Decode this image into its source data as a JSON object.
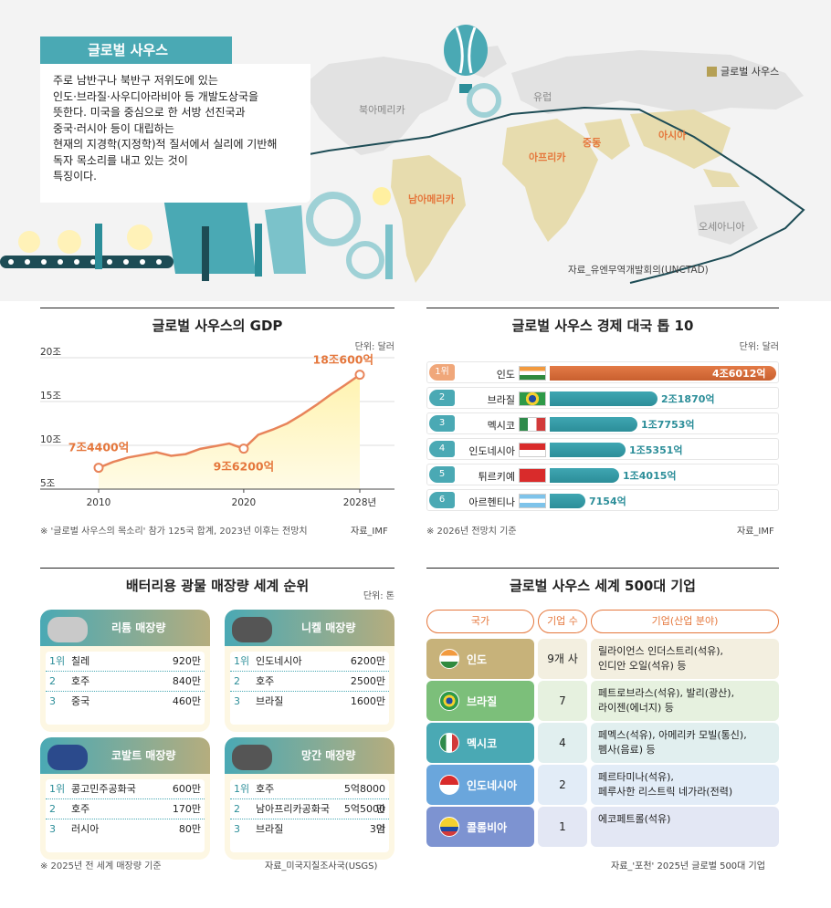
{
  "hero": {
    "tag": "글로벌 사우스",
    "intro": [
      "주로 남반구나 북반구 저위도에 있는",
      "인도·브라질·사우디아라비아 등 개발도상국을",
      "뜻한다. 미국을 중심으로 한 서방 선진국과",
      "중국·러시아 등이 대립하는",
      "현재의 지경학(지정학)적 질서에서 실리에 기반해",
      "독자 목소리를 내고 있는 것이",
      "특징이다."
    ],
    "legend": "글로벌 사우스",
    "regions": {
      "north_america": "북아메리카",
      "europe": "유럽",
      "south_america": "남아메리카",
      "africa": "아프리카",
      "middle_east": "중동",
      "asia": "아시아",
      "oceania": "오세아니아"
    },
    "source": "자료_유엔무역개발회의(UNCTAD)",
    "colors": {
      "teal": "#4aa9b4",
      "south": "#e7dcae",
      "orange": "#e5773c"
    }
  },
  "gdp": {
    "title": "글로벌 사우스의 GDP",
    "unit": "단위: 달러",
    "note": "※ '글로벌 사우스의 목소리' 참가 125국 합계, 2023년 이후는 전망치",
    "source": "자료_IMF"
  },
  "chart_data": {
    "type": "area",
    "x": [
      2010,
      2011,
      2012,
      2013,
      2014,
      2015,
      2016,
      2017,
      2018,
      2019,
      2020,
      2021,
      2022,
      2023,
      2024,
      2025,
      2026,
      2027,
      2028
    ],
    "y": [
      7.44,
      8.1,
      8.6,
      8.9,
      9.2,
      8.8,
      9.0,
      9.6,
      9.9,
      10.2,
      9.62,
      11.2,
      11.8,
      12.5,
      13.5,
      14.6,
      15.8,
      16.9,
      18.06
    ],
    "xticks": [
      "2010",
      "2020",
      "2028년"
    ],
    "yticks": [
      "20조",
      "15조",
      "10조",
      "5조"
    ],
    "ylim": [
      5,
      20
    ],
    "labels": [
      {
        "x": 2010,
        "text": "7조4400억"
      },
      {
        "x": 2020,
        "text": "9조6200억"
      },
      {
        "x": 2028,
        "text": "18조600억"
      }
    ],
    "grid": true
  },
  "top10": {
    "title": "글로벌 사우스 경제 대국 톱 10",
    "unit": "단위: 달러",
    "note": "※ 2026년 전망치 기준",
    "source": "자료_IMF",
    "rows": [
      {
        "rank": "1위",
        "country": "인도",
        "value": 4.6012,
        "label": "4조6012억"
      },
      {
        "rank": "2",
        "country": "브라질",
        "value": 2.187,
        "label": "2조1870억"
      },
      {
        "rank": "3",
        "country": "멕시코",
        "value": 1.7753,
        "label": "1조7753억"
      },
      {
        "rank": "4",
        "country": "인도네시아",
        "value": 1.5351,
        "label": "1조5351억"
      },
      {
        "rank": "5",
        "country": "튀르키예",
        "value": 1.4015,
        "label": "1조4015억"
      },
      {
        "rank": "6",
        "country": "아르헨티나",
        "value": 0.7154,
        "label": "7154억"
      }
    ]
  },
  "minerals": {
    "title": "배터리용 광물 매장량 세계 순위",
    "unit": "단위: 톤",
    "note": "※ 2025년 전 세계 매장량 기준",
    "source": "자료_미국지질조사국(USGS)",
    "cards": [
      {
        "name": "리튬 매장량",
        "rows": [
          {
            "rank": "1위",
            "country": "칠레",
            "value": "920만"
          },
          {
            "rank": "2",
            "country": "호주",
            "value": "840만"
          },
          {
            "rank": "3",
            "country": "중국",
            "value": "460만"
          }
        ]
      },
      {
        "name": "니켈 매장량",
        "rows": [
          {
            "rank": "1위",
            "country": "인도네시아",
            "value": "6200만"
          },
          {
            "rank": "2",
            "country": "호주",
            "value": "2500만"
          },
          {
            "rank": "3",
            "country": "브라질",
            "value": "1600만"
          }
        ]
      },
      {
        "name": "코발트 매장량",
        "rows": [
          {
            "rank": "1위",
            "country": "콩고민주공화국",
            "value": "600만"
          },
          {
            "rank": "2",
            "country": "호주",
            "value": "170만"
          },
          {
            "rank": "3",
            "country": "러시아",
            "value": "80만"
          }
        ]
      },
      {
        "name": "망간 매장량",
        "rows": [
          {
            "rank": "1위",
            "country": "호주",
            "value": "5억8000만"
          },
          {
            "rank": "2",
            "country": "남아프리카공화국",
            "value": "5억5000만"
          },
          {
            "rank": "3",
            "country": "브라질",
            "value": "3억"
          }
        ]
      }
    ]
  },
  "companies": {
    "title": "글로벌 사우스 세계 500대 기업",
    "headers": [
      "국가",
      "기업 수",
      "기업(산업 분야)"
    ],
    "source": "자료_'포천' 2025년 글로벌 500대 기업",
    "rows": [
      {
        "country": "인도",
        "count": "9개 사",
        "firms": [
          "릴라이언스 인더스트리(석유),",
          "인디안 오일(석유) 등"
        ],
        "color": "#c7b27a",
        "bg": "#f3efe0"
      },
      {
        "country": "브라질",
        "count": "7",
        "firms": [
          "페트로브라스(석유), 발리(광산),",
          "라이젠(에너지) 등"
        ],
        "color": "#7cbf7a",
        "bg": "#e6f1df"
      },
      {
        "country": "멕시코",
        "count": "4",
        "firms": [
          "페멕스(석유), 아메리카 모빌(통신),",
          "펨사(음료) 등"
        ],
        "color": "#4aa9b4",
        "bg": "#e1efef"
      },
      {
        "country": "인도네시아",
        "count": "2",
        "firms": [
          "페르타미나(석유),",
          "페루사한 리스트릭 네가라(전력)"
        ],
        "color": "#6aa6dc",
        "bg": "#e2ecf7"
      },
      {
        "country": "콜롬비아",
        "count": "1",
        "firms": [
          "에코페트롤(석유)"
        ],
        "color": "#7d93d1",
        "bg": "#e3e7f4"
      }
    ]
  }
}
